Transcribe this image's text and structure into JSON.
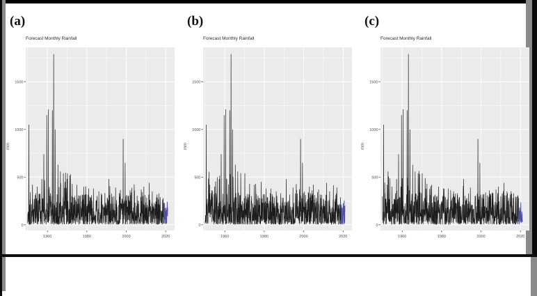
{
  "page": {
    "background": "#ffffff",
    "frame_color": "#000000",
    "rail_color": "#8a8a8a"
  },
  "figures": [
    {
      "label": "(a)"
    },
    {
      "label": "(b)"
    },
    {
      "label": "(c)"
    }
  ],
  "chart_data": [
    {
      "type": "line",
      "panel": "a",
      "title": "Forecast Monthly Rainfall",
      "ylabel": "mm",
      "xlabel": "",
      "legend": "none",
      "xticks": [
        1960,
        1980,
        2000,
        2020
      ],
      "yticks": [
        0,
        500,
        1000,
        1500
      ],
      "x_minor": [
        1950,
        1970,
        1990,
        2010
      ],
      "y_minor": [
        250,
        750,
        1250,
        1750
      ],
      "xlim": [
        1949,
        2024.5
      ],
      "ylim": [
        -60,
        1860
      ],
      "panel_bg": "#ebebeb",
      "grid_color": "#ffffff",
      "tick_color": "#4d4d4d",
      "history": {
        "start": 1950,
        "end": 2019,
        "color": "#1c1c1c",
        "baseline_max": 330,
        "early_era_end": 1972,
        "early_boost_max": 570
      },
      "forecast": {
        "start": 2019,
        "end": 2021,
        "color": "#4f4fa5",
        "max": 260
      },
      "peaks": [
        [
          1950.6,
          1050
        ],
        [
          1952.4,
          420
        ],
        [
          1954.8,
          400
        ],
        [
          1957.2,
          480
        ],
        [
          1958.2,
          740
        ],
        [
          1959.7,
          1150
        ],
        [
          1960.4,
          1210
        ],
        [
          1962.5,
          1200
        ],
        [
          1963.2,
          1790
        ],
        [
          1963.9,
          1000
        ],
        [
          1965.3,
          630
        ],
        [
          1966.6,
          560
        ],
        [
          1968.1,
          540
        ],
        [
          1970.2,
          540
        ],
        [
          1972.6,
          430
        ],
        [
          1974.9,
          420
        ],
        [
          1978.4,
          400
        ],
        [
          1980.9,
          380
        ],
        [
          1983.3,
          380
        ],
        [
          1986.1,
          350
        ],
        [
          1991.2,
          480
        ],
        [
          1994.6,
          390
        ],
        [
          1998.4,
          900
        ],
        [
          1999.4,
          650
        ],
        [
          2002.3,
          340
        ],
        [
          2004.2,
          360
        ],
        [
          2007.6,
          370
        ],
        [
          2011.7,
          440
        ],
        [
          2013.2,
          350
        ],
        [
          2016.5,
          330
        ]
      ],
      "seed": 101
    },
    {
      "type": "line",
      "panel": "b",
      "title": "Forecast Monthly Rainfall",
      "ylabel": "mm",
      "xlabel": "",
      "legend": "none",
      "xticks": [
        1960,
        1980,
        2000,
        2020
      ],
      "yticks": [
        0,
        500,
        1000,
        1500
      ],
      "x_minor": [
        1950,
        1970,
        1990,
        2010
      ],
      "y_minor": [
        250,
        750,
        1250,
        1750
      ],
      "xlim": [
        1949,
        2024.5
      ],
      "ylim": [
        -60,
        1860
      ],
      "panel_bg": "#ebebeb",
      "grid_color": "#ffffff",
      "tick_color": "#4d4d4d",
      "history": {
        "start": 1950,
        "end": 2019,
        "color": "#1c1c1c",
        "baseline_max": 330,
        "early_era_end": 1972,
        "early_boost_max": 570
      },
      "forecast": {
        "start": 2019,
        "end": 2021,
        "color": "#4f4fa5",
        "max": 260
      },
      "peaks": [
        [
          1950.6,
          1050
        ],
        [
          1952.4,
          420
        ],
        [
          1954.8,
          400
        ],
        [
          1957.2,
          480
        ],
        [
          1958.2,
          740
        ],
        [
          1959.7,
          1150
        ],
        [
          1960.4,
          1210
        ],
        [
          1962.5,
          1200
        ],
        [
          1963.2,
          1790
        ],
        [
          1963.9,
          1000
        ],
        [
          1965.3,
          630
        ],
        [
          1966.6,
          560
        ],
        [
          1968.1,
          540
        ],
        [
          1970.2,
          540
        ],
        [
          1972.6,
          430
        ],
        [
          1974.9,
          420
        ],
        [
          1978.4,
          450
        ],
        [
          1980.9,
          380
        ],
        [
          1983.3,
          380
        ],
        [
          1986.1,
          350
        ],
        [
          1991.2,
          480
        ],
        [
          1994.6,
          390
        ],
        [
          1998.4,
          900
        ],
        [
          1999.4,
          650
        ],
        [
          2002.3,
          340
        ],
        [
          2004.2,
          360
        ],
        [
          2007.6,
          370
        ],
        [
          2011.7,
          440
        ],
        [
          2013.2,
          350
        ],
        [
          2016.5,
          330
        ]
      ],
      "seed": 202
    },
    {
      "type": "line",
      "panel": "c",
      "title": "Forecast Monthly Rainfall",
      "ylabel": "mm",
      "xlabel": "",
      "legend": "none",
      "xticks": [
        1960,
        1980,
        2000,
        2020
      ],
      "yticks": [
        0,
        500,
        1000,
        1500
      ],
      "x_minor": [
        1950,
        1970,
        1990,
        2010
      ],
      "y_minor": [
        250,
        750,
        1250,
        1750
      ],
      "xlim": [
        1949,
        2024.5
      ],
      "ylim": [
        -60,
        1860
      ],
      "panel_bg": "#ebebeb",
      "grid_color": "#ffffff",
      "tick_color": "#4d4d4d",
      "history": {
        "start": 1950,
        "end": 2019,
        "color": "#1c1c1c",
        "baseline_max": 330,
        "early_era_end": 1972,
        "early_boost_max": 570
      },
      "forecast": {
        "start": 2019,
        "end": 2021,
        "color": "#4f4fa5",
        "max": 260
      },
      "peaks": [
        [
          1950.6,
          1050
        ],
        [
          1952.4,
          420
        ],
        [
          1954.8,
          400
        ],
        [
          1957.2,
          480
        ],
        [
          1958.2,
          740
        ],
        [
          1959.7,
          1150
        ],
        [
          1960.4,
          1210
        ],
        [
          1962.5,
          1200
        ],
        [
          1963.2,
          1790
        ],
        [
          1963.9,
          1000
        ],
        [
          1965.3,
          630
        ],
        [
          1966.6,
          560
        ],
        [
          1968.1,
          540
        ],
        [
          1970.2,
          540
        ],
        [
          1972.6,
          430
        ],
        [
          1974.9,
          420
        ],
        [
          1978.4,
          400
        ],
        [
          1980.9,
          380
        ],
        [
          1983.3,
          380
        ],
        [
          1986.1,
          350
        ],
        [
          1991.2,
          480
        ],
        [
          1994.6,
          390
        ],
        [
          1998.4,
          900
        ],
        [
          1999.4,
          650
        ],
        [
          2002.3,
          340
        ],
        [
          2004.2,
          360
        ],
        [
          2007.6,
          370
        ],
        [
          2011.7,
          440
        ],
        [
          2013.2,
          350
        ],
        [
          2016.5,
          330
        ]
      ],
      "seed": 303
    }
  ]
}
